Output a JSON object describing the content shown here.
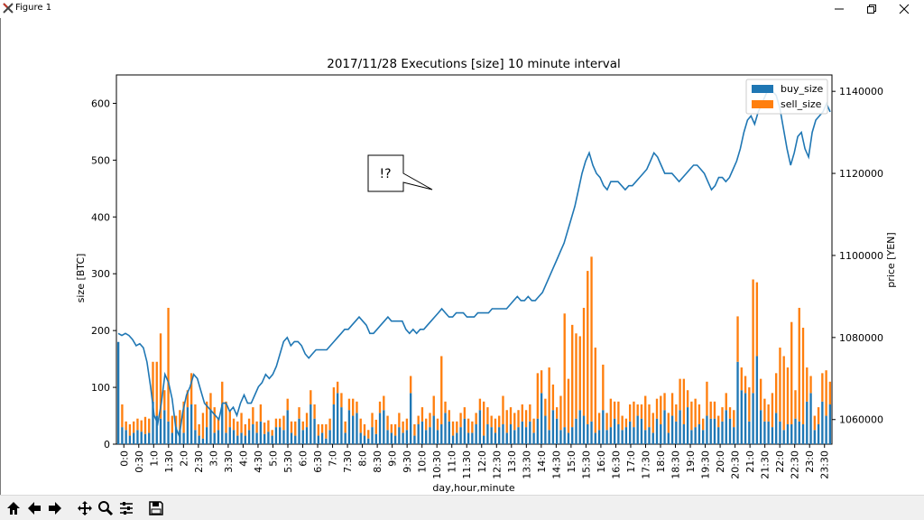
{
  "window": {
    "title": "Figure 1",
    "app_icon": "matplotlib-x-icon"
  },
  "window_controls": [
    "minimize-icon",
    "restore-icon",
    "close-icon"
  ],
  "toolbar": {
    "buttons": [
      {
        "name": "home-icon"
      },
      {
        "name": "back-arrow-icon"
      },
      {
        "name": "forward-arrow-icon"
      },
      {
        "name": "pan-icon"
      },
      {
        "name": "zoom-icon"
      },
      {
        "name": "subplots-icon"
      },
      {
        "name": "save-icon"
      }
    ]
  },
  "colors": {
    "buy": "#1f77b4",
    "sell": "#ff7f0e",
    "price": "#1f77b4"
  },
  "annotation": {
    "text": "!?"
  },
  "chart_data": {
    "type": "bar",
    "title": "2017/11/28 Executions [size] 10 minute interval",
    "xlabel": "day,hour,minute",
    "ylabel": "size [BTC]",
    "ylabel_right": "price [YEN]",
    "ylim": [
      0,
      650
    ],
    "ylim_right": [
      1054000,
      1144000
    ],
    "yticks": [
      "0",
      "100",
      "200",
      "300",
      "400",
      "500",
      "600"
    ],
    "yticks_right": [
      "1060000",
      "1080000",
      "1100000",
      "1120000",
      "1140000"
    ],
    "legend_position": "top-right",
    "stacked": true,
    "x_tick_labels": [
      "0:0",
      "0:30",
      "1:0",
      "1:30",
      "2:0",
      "2:30",
      "3:0",
      "3:30",
      "4:0",
      "4:30",
      "5:0",
      "5:30",
      "6:0",
      "6:30",
      "7:0",
      "7:30",
      "8:0",
      "8:30",
      "9:0",
      "9:30",
      "10:0",
      "10:30",
      "11:0",
      "11:30",
      "12:0",
      "12:30",
      "13:0",
      "13:30",
      "14:0",
      "14:30",
      "15:0",
      "15:30",
      "16:0",
      "16:30",
      "17:0",
      "17:30",
      "18:0",
      "18:30",
      "19:0",
      "19:30",
      "20:0",
      "20:30",
      "21:0",
      "21:30",
      "22:0",
      "22:30",
      "23:0",
      "23:30"
    ],
    "series": [
      {
        "name": "buy_size",
        "values": [
          180,
          30,
          25,
          15,
          20,
          25,
          22,
          18,
          20,
          75,
          50,
          45,
          60,
          40,
          20,
          30,
          25,
          20,
          65,
          70,
          25,
          15,
          10,
          30,
          60,
          20,
          25,
          70,
          20,
          30,
          25,
          15,
          20,
          15,
          25,
          35,
          20,
          40,
          18,
          22,
          15,
          30,
          30,
          25,
          60,
          20,
          15,
          45,
          25,
          30,
          70,
          45,
          15,
          20,
          10,
          25,
          70,
          90,
          65,
          20,
          60,
          50,
          55,
          20,
          15,
          10,
          30,
          18,
          55,
          60,
          25,
          20,
          15,
          30,
          20,
          25,
          90,
          15,
          35,
          40,
          25,
          30,
          50,
          25,
          35,
          55,
          40,
          15,
          20,
          30,
          45,
          20,
          20,
          35,
          60,
          15,
          35,
          30,
          20,
          30,
          35,
          20,
          35,
          25,
          30,
          40,
          30,
          40,
          20,
          45,
          90,
          50,
          25,
          60,
          45,
          25,
          30,
          20,
          30,
          45,
          60,
          50,
          35,
          40,
          20,
          25,
          60,
          25,
          30,
          45,
          35,
          25,
          30,
          40,
          30,
          50,
          45,
          25,
          30,
          20,
          45,
          35,
          60,
          20,
          50,
          40,
          60,
          35,
          65,
          25,
          30,
          35,
          25,
          50,
          45,
          45,
          30,
          40,
          60,
          45,
          30,
          145,
          95,
          90,
          40,
          90,
          155,
          60,
          40,
          40,
          30,
          55,
          40,
          25,
          35,
          35,
          45,
          40,
          35,
          75,
          90,
          25,
          35,
          75,
          50,
          70
        ]
      },
      {
        "name": "sell_size",
        "values": [
          0,
          40,
          15,
          20,
          20,
          20,
          20,
          30,
          25,
          70,
          95,
          150,
          35,
          200,
          30,
          20,
          35,
          55,
          30,
          55,
          45,
          20,
          45,
          45,
          30,
          45,
          20,
          40,
          55,
          30,
          20,
          25,
          35,
          20,
          20,
          30,
          20,
          30,
          20,
          20,
          10,
          15,
          15,
          25,
          20,
          20,
          25,
          20,
          15,
          25,
          25,
          25,
          20,
          15,
          25,
          20,
          30,
          20,
          25,
          20,
          20,
          30,
          20,
          25,
          20,
          15,
          25,
          25,
          20,
          25,
          25,
          15,
          20,
          25,
          20,
          20,
          30,
          20,
          15,
          25,
          20,
          25,
          35,
          20,
          120,
          20,
          20,
          25,
          20,
          25,
          20,
          25,
          20,
          20,
          20,
          60,
          30,
          20,
          25,
          20,
          50,
          40,
          30,
          30,
          30,
          30,
          30,
          30,
          25,
          80,
          40,
          30,
          110,
          45,
          20,
          60,
          200,
          95,
          180,
          150,
          130,
          190,
          270,
          290,
          150,
          30,
          80,
          30,
          50,
          30,
          40,
          25,
          15,
          30,
          45,
          20,
          25,
          60,
          40,
          35,
          35,
          50,
          30,
          35,
          40,
          30,
          55,
          80,
          30,
          50,
          50,
          35,
          20,
          60,
          30,
          30,
          20,
          25,
          30,
          20,
          30,
          80,
          40,
          30,
          60,
          200,
          130,
          55,
          40,
          30,
          60,
          70,
          130,
          130,
          100,
          180,
          50,
          200,
          170,
          60,
          30,
          25,
          30,
          50,
          80,
          40
        ]
      },
      {
        "name": "price",
        "values": [
          1081000,
          1080500,
          1081000,
          1080500,
          1079500,
          1078000,
          1078500,
          1077500,
          1074000,
          1068000,
          1061000,
          1059000,
          1064000,
          1071000,
          1069000,
          1065000,
          1058000,
          1056000,
          1062000,
          1066000,
          1068000,
          1071000,
          1070000,
          1067000,
          1064000,
          1063000,
          1062000,
          1061000,
          1060000,
          1064000,
          1064000,
          1062000,
          1063000,
          1061000,
          1064000,
          1066000,
          1064000,
          1064000,
          1066000,
          1068000,
          1069000,
          1071000,
          1070000,
          1071000,
          1073000,
          1076000,
          1079000,
          1080000,
          1078000,
          1079000,
          1079000,
          1078000,
          1076000,
          1075000,
          1076000,
          1077000,
          1077000,
          1077000,
          1077000,
          1078000,
          1079000,
          1080000,
          1081000,
          1082000,
          1082000,
          1083000,
          1084000,
          1085000,
          1084000,
          1083000,
          1081000,
          1081000,
          1082000,
          1083000,
          1084000,
          1085000,
          1084000,
          1084000,
          1084000,
          1084000,
          1082000,
          1081000,
          1082000,
          1081000,
          1082000,
          1082000,
          1083000,
          1084000,
          1085000,
          1086000,
          1087000,
          1086000,
          1085000,
          1085000,
          1086000,
          1086000,
          1086000,
          1085000,
          1085000,
          1085000,
          1086000,
          1086000,
          1086000,
          1086000,
          1087000,
          1087000,
          1087000,
          1087000,
          1087000,
          1088000,
          1089000,
          1090000,
          1089000,
          1089000,
          1090000,
          1089000,
          1089000,
          1090000,
          1091000,
          1093000,
          1095000,
          1097000,
          1099000,
          1101000,
          1103000,
          1106000,
          1109000,
          1112000,
          1116000,
          1120000,
          1123000,
          1125000,
          1122000,
          1120000,
          1119000,
          1117000,
          1116000,
          1118000,
          1118000,
          1118000,
          1117000,
          1116000,
          1117000,
          1117000,
          1118000,
          1119000,
          1120000,
          1121000,
          1123000,
          1125000,
          1124000,
          1122000,
          1120000,
          1120000,
          1120000,
          1119000,
          1118000,
          1119000,
          1120000,
          1121000,
          1122000,
          1122000,
          1121000,
          1120000,
          1118000,
          1116000,
          1117000,
          1119000,
          1119000,
          1118000,
          1119000,
          1121000,
          1123000,
          1126000,
          1130000,
          1133000,
          1134000,
          1132000,
          1135000,
          1137000,
          1139000,
          1141000,
          1140000,
          1139000,
          1136000,
          1131000,
          1126000,
          1122000,
          1125000,
          1129000,
          1130000,
          1126000,
          1124000,
          1130000,
          1133000,
          1134000,
          1135000,
          1137000,
          1135000
        ]
      }
    ],
    "annotation_text": "!?"
  }
}
